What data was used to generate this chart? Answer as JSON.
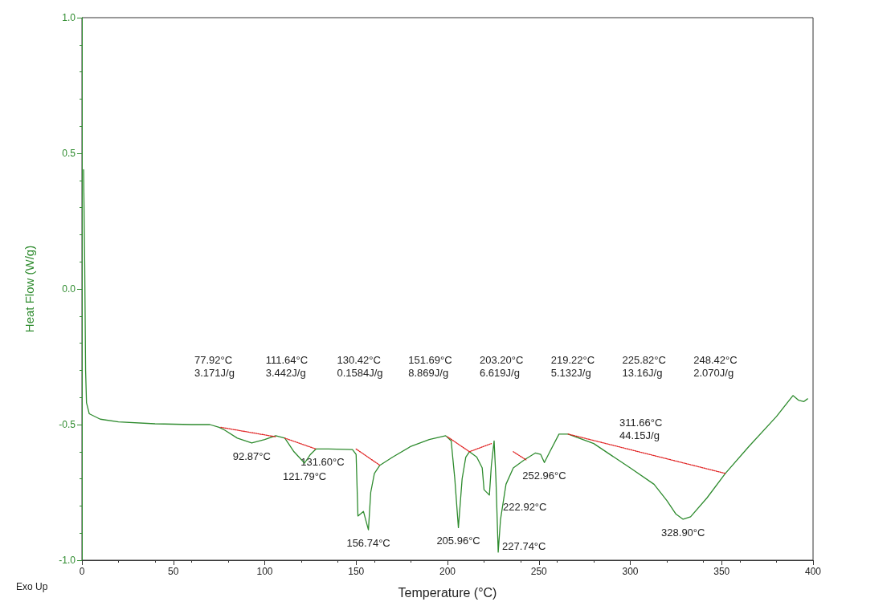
{
  "chart_data": {
    "type": "line",
    "xlabel": "Temperature (°C)",
    "ylabel": "Heat Flow (W/g)",
    "xlim": [
      0,
      400
    ],
    "xticks": [
      0,
      50,
      100,
      150,
      200,
      250,
      300,
      350,
      400
    ],
    "ylim": [
      -1,
      1
    ],
    "yticks": [
      {
        "value": -1,
        "label": "-1.0"
      },
      -0.5,
      {
        "value": 0,
        "label": "0.0"
      },
      0.5,
      {
        "value": 1,
        "label": "1.0"
      }
    ],
    "grid": false,
    "marker": "none",
    "series": [
      {
        "color": "#2e8b2e",
        "line_style": "solid",
        "x": [
          0.9,
          1.5,
          2,
          2.5,
          4,
          10,
          20,
          40,
          60,
          70,
          75,
          78,
          85,
          92.87,
          100,
          106,
          111,
          116,
          121.79,
          125,
          128,
          135,
          148,
          150,
          151,
          154,
          156.74,
          158,
          160,
          163,
          170,
          180,
          190,
          199,
          202,
          204,
          205.96,
          208,
          210,
          212,
          216,
          219,
          220,
          222.92,
          224,
          225.5,
          226.5,
          227.74,
          229,
          232,
          236,
          242,
          248,
          251,
          253,
          256,
          261,
          266,
          280,
          300,
          313,
          320,
          325,
          328.9,
          333,
          342,
          352,
          365,
          380,
          389,
          392,
          395,
          397
        ],
        "values": [
          0.44,
          0.1,
          -0.3,
          -0.42,
          -0.46,
          -0.48,
          -0.49,
          -0.497,
          -0.5,
          -0.5,
          -0.51,
          -0.52,
          -0.55,
          -0.568,
          -0.555,
          -0.541,
          -0.55,
          -0.6,
          -0.642,
          -0.61,
          -0.59,
          -0.59,
          -0.592,
          -0.61,
          -0.837,
          -0.82,
          -0.888,
          -0.75,
          -0.68,
          -0.65,
          -0.62,
          -0.58,
          -0.555,
          -0.541,
          -0.56,
          -0.7,
          -0.88,
          -0.7,
          -0.62,
          -0.6,
          -0.62,
          -0.66,
          -0.74,
          -0.76,
          -0.65,
          -0.56,
          -0.7,
          -0.97,
          -0.85,
          -0.72,
          -0.66,
          -0.63,
          -0.605,
          -0.61,
          -0.64,
          -0.6,
          -0.535,
          -0.535,
          -0.57,
          -0.66,
          -0.72,
          -0.78,
          -0.83,
          -0.849,
          -0.84,
          -0.77,
          -0.68,
          -0.58,
          -0.47,
          -0.393,
          -0.41,
          -0.415,
          -0.405
        ]
      },
      {
        "color": "#e02020",
        "line_style": "dotted",
        "x": [
          76,
          106,
          null,
          111,
          128,
          null,
          150,
          163,
          null,
          200,
          212,
          null,
          212,
          224,
          null,
          236,
          243,
          null,
          266,
          352
        ],
        "values": [
          -0.51,
          -0.545,
          null,
          -0.55,
          -0.59,
          null,
          -0.59,
          -0.65,
          null,
          -0.545,
          -0.6,
          null,
          -0.6,
          -0.57,
          null,
          -0.6,
          -0.63,
          null,
          -0.535,
          -0.68
        ]
      }
    ],
    "annotations": [
      "77.92°C\n3.171J/g",
      "111.64°C\n3.442J/g",
      "130.42°C\n0.1584J/g",
      "151.69°C\n8.869J/g",
      "203.20°C\n6.619J/g",
      "219.22°C\n5.132J/g",
      "225.82°C\n13.16J/g",
      "248.42°C\n2.070J/g",
      {
        "text": "92.87°C",
        "x": 92.87,
        "y": -0.568
      },
      {
        "text": "121.79°C",
        "x": 121.79,
        "y": -0.642
      },
      {
        "text": "131.60°C",
        "x": 131.6,
        "y": -0.59
      },
      {
        "text": "156.74°C",
        "x": 156.74,
        "y": -0.888
      },
      {
        "text": "205.96°C",
        "x": 205.96,
        "y": -0.88
      },
      {
        "text": "222.92°C",
        "x": 222.92,
        "y": -0.76
      },
      {
        "text": "227.74°C",
        "x": 227.74,
        "y": -0.97
      },
      {
        "text": "252.96°C",
        "x": 252.96,
        "y": -0.64
      },
      {
        "text": "328.90°C",
        "x": 328.9,
        "y": -0.849
      },
      {
        "text": "311.66°C\n44.15J/g",
        "x": 311.66,
        "y": -0.6
      },
      "Exo Up"
    ]
  }
}
